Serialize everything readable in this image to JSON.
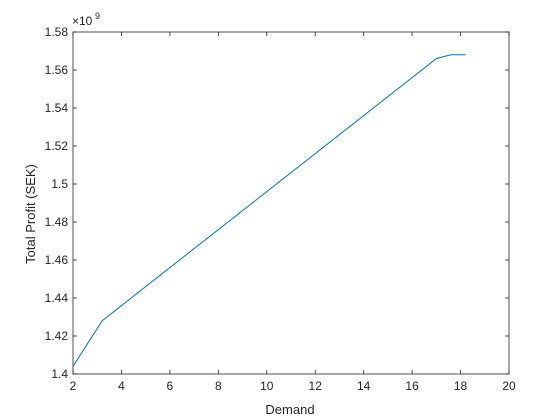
{
  "chart_data": {
    "type": "line",
    "title": "",
    "xlabel": "Demand",
    "ylabel": "Total Profit (SEK)",
    "xlim": [
      2,
      20
    ],
    "ylim": [
      1.4,
      1.58
    ],
    "y_exponent_label": "×10",
    "y_exponent_power": "9",
    "x_ticks": [
      "2",
      "4",
      "6",
      "8",
      "10",
      "12",
      "14",
      "16",
      "18",
      "20"
    ],
    "y_ticks": [
      "1.4",
      "1.42",
      "1.44",
      "1.46",
      "1.48",
      "1.5",
      "1.52",
      "1.54",
      "1.56",
      "1.58"
    ],
    "grid": false,
    "box": true,
    "series": [
      {
        "color": "#0072BD",
        "x": [
          2.0,
          3.2,
          17.0,
          17.6,
          18.2
        ],
        "y": [
          1.404,
          1.428,
          1.566,
          1.568,
          1.568
        ]
      }
    ]
  }
}
